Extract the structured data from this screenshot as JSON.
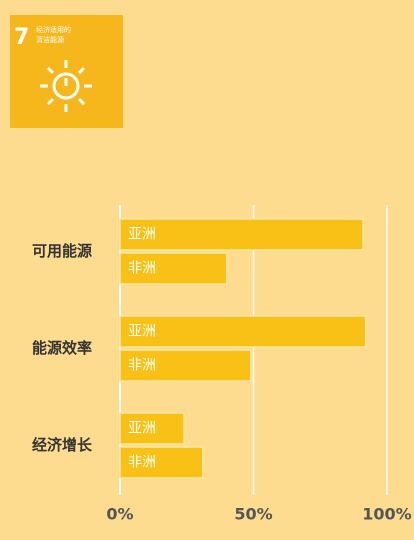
{
  "chart_data": {
    "type": "bar",
    "orientation": "horizontal",
    "badge": {
      "number": "7",
      "lines": [
        "经济适用的",
        "清洁能源"
      ],
      "color": "#f5b71c"
    },
    "categories": [
      "可用能源",
      "能源效率",
      "经济增长"
    ],
    "series": [
      {
        "name": "亚洲",
        "color": "#f9c115",
        "values": [
          91,
          92,
          24
        ]
      },
      {
        "name": "非洲",
        "color": "#f9c115",
        "values": [
          40,
          49,
          31
        ]
      }
    ],
    "xlim": [
      0,
      100
    ],
    "xticks": [
      {
        "value": 0,
        "label": "0%"
      },
      {
        "value": 50,
        "label": "50%"
      },
      {
        "value": 100,
        "label": "100%"
      }
    ],
    "grid": true
  }
}
